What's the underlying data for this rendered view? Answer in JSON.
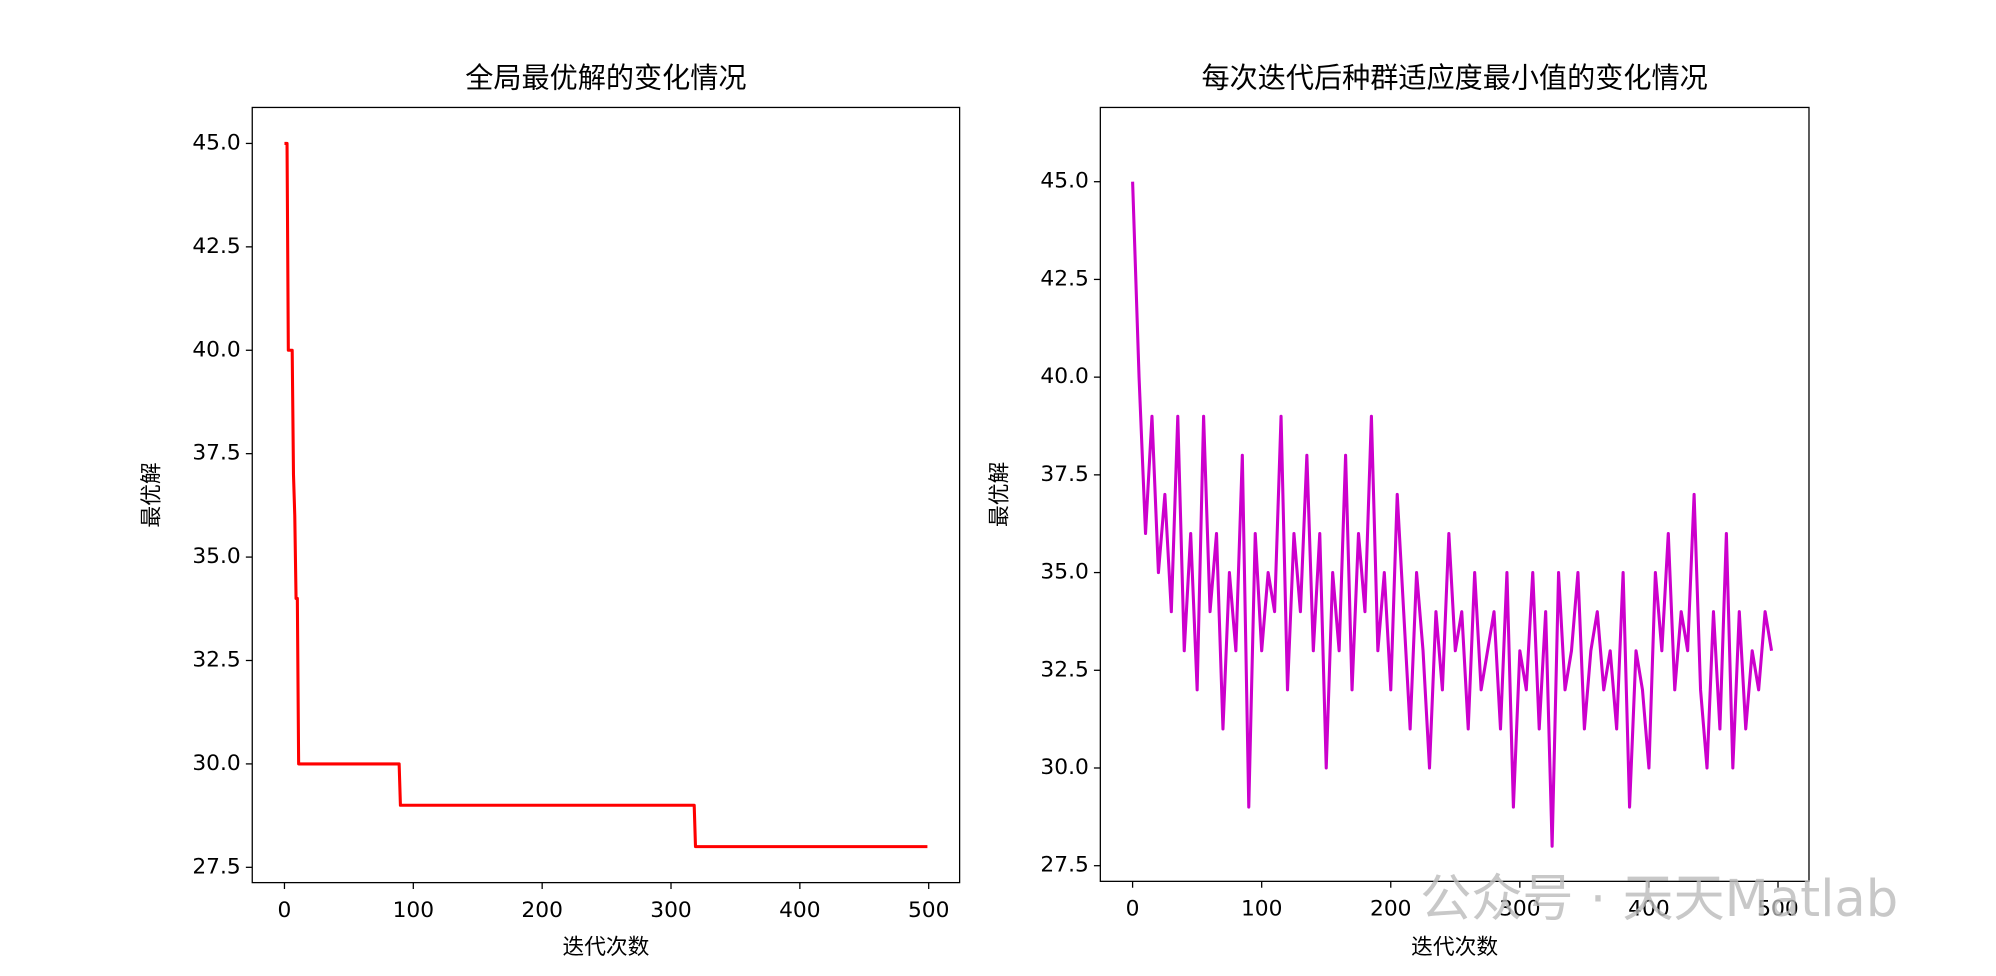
{
  "chart_data": [
    {
      "type": "line",
      "title": "全局最优解的变化情况",
      "xlabel": "迭代次数",
      "ylabel": "最优解",
      "x": [
        0,
        2,
        3,
        6,
        7,
        8,
        9,
        10,
        11,
        89,
        90,
        318,
        319,
        499
      ],
      "series": [
        {
          "color": "#ff0000",
          "values": [
            45,
            45,
            40,
            40,
            37,
            36,
            34,
            34,
            30,
            30,
            29,
            29,
            28,
            28
          ]
        }
      ],
      "xlim": [
        -25,
        524
      ],
      "ylim": [
        27.13,
        45.87
      ],
      "xticks": [
        0,
        100,
        200,
        300,
        400,
        500
      ],
      "yticks": [
        {
          "value": 27.5,
          "label": "27.5"
        },
        {
          "value": 30,
          "label": "30.0"
        },
        {
          "value": 32.5,
          "label": "32.5"
        },
        {
          "value": 35,
          "label": "35.0"
        },
        {
          "value": 37.5,
          "label": "37.5"
        },
        {
          "value": 40,
          "label": "40.0"
        },
        {
          "value": 42.5,
          "label": "42.5"
        },
        {
          "value": 45,
          "label": "45.0"
        }
      ]
    },
    {
      "type": "line",
      "title": "每次迭代后种群适应度最小值的变化情况",
      "xlabel": "迭代次数",
      "ylabel": "最优解",
      "x": [
        0,
        5,
        10,
        15,
        20,
        25,
        30,
        35,
        40,
        45,
        50,
        55,
        60,
        65,
        70,
        75,
        80,
        85,
        90,
        95,
        100,
        105,
        110,
        115,
        120,
        125,
        130,
        135,
        140,
        145,
        150,
        155,
        160,
        165,
        170,
        175,
        180,
        185,
        190,
        195,
        200,
        205,
        210,
        215,
        220,
        225,
        230,
        235,
        240,
        245,
        250,
        255,
        260,
        265,
        270,
        275,
        280,
        285,
        290,
        295,
        300,
        305,
        310,
        315,
        320,
        325,
        330,
        335,
        340,
        345,
        350,
        355,
        360,
        365,
        370,
        375,
        380,
        385,
        390,
        395,
        400,
        405,
        410,
        415,
        420,
        425,
        430,
        435,
        440,
        445,
        450,
        455,
        460,
        465,
        470,
        475,
        480,
        485,
        490,
        495
      ],
      "series": [
        {
          "color": "#cc00cc",
          "values": [
            45,
            40,
            36,
            39,
            35,
            37,
            34,
            39,
            33,
            36,
            32,
            39,
            34,
            36,
            31,
            35,
            33,
            38,
            29,
            36,
            33,
            35,
            34,
            39,
            32,
            36,
            34,
            38,
            33,
            36,
            30,
            35,
            33,
            38,
            32,
            36,
            34,
            39,
            33,
            35,
            32,
            37,
            34,
            31,
            35,
            33,
            30,
            34,
            32,
            36,
            33,
            34,
            31,
            35,
            32,
            33,
            34,
            31,
            35,
            29,
            33,
            32,
            35,
            31,
            34,
            28,
            35,
            32,
            33,
            35,
            31,
            33,
            34,
            32,
            33,
            31,
            35,
            29,
            33,
            32,
            30,
            35,
            33,
            36,
            32,
            34,
            33,
            37,
            32,
            30,
            34,
            31,
            36,
            30,
            34,
            31,
            33,
            32,
            34,
            33
          ]
        }
      ],
      "xlim": [
        -25,
        524
      ],
      "ylim": [
        27.1,
        46.9
      ],
      "xticks": [
        0,
        100,
        200,
        300,
        400,
        500
      ],
      "yticks": [
        {
          "value": 27.5,
          "label": "27.5"
        },
        {
          "value": 30,
          "label": "30.0"
        },
        {
          "value": 32.5,
          "label": "32.5"
        },
        {
          "value": 35,
          "label": "35.0"
        },
        {
          "value": 37.5,
          "label": "37.5"
        },
        {
          "value": 40,
          "label": "40.0"
        },
        {
          "value": 42.5,
          "label": "42.5"
        },
        {
          "value": 45,
          "label": "45.0"
        }
      ]
    }
  ],
  "watermark": "公众号 · 天天Matlab"
}
